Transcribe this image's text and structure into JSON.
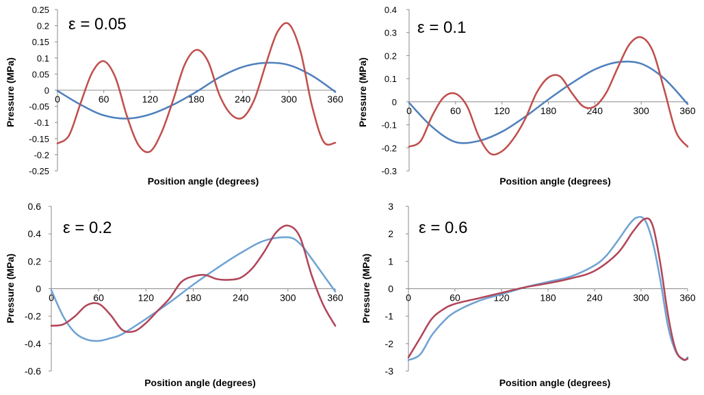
{
  "colors": {
    "blue": "#4f81bd",
    "red": "#c0504d",
    "axis": "#888888",
    "text": "#000000"
  },
  "chart_data": [
    {
      "type": "line",
      "title": "ε = 0.05",
      "xlabel": "Position angle (degrees)",
      "ylabel": "Pressure (MPa)",
      "xlim": [
        0,
        360
      ],
      "ylim": [
        -0.25,
        0.25
      ],
      "xticks": [
        0,
        60,
        120,
        180,
        240,
        300,
        360
      ],
      "yticks": [
        -0.25,
        -0.2,
        -0.15,
        -0.1,
        -0.05,
        0,
        0.05,
        0.1,
        0.15,
        0.2,
        0.25
      ],
      "ytick_labels": [
        "-0.25",
        "-0.2",
        "-0.15",
        "-0.1",
        "-0.05",
        "0",
        "0.05",
        "0.1",
        "0.15",
        "0.2",
        "0.25"
      ],
      "series": [
        {
          "color": "#4f81bd",
          "x": [
            0,
            30,
            60,
            90,
            120,
            150,
            180,
            210,
            240,
            270,
            300,
            330,
            360
          ],
          "y": [
            -0.002,
            -0.045,
            -0.078,
            -0.088,
            -0.075,
            -0.045,
            -0.005,
            0.04,
            0.072,
            0.085,
            0.078,
            0.045,
            -0.005
          ]
        },
        {
          "color": "#c0504d",
          "x": [
            0,
            15,
            30,
            45,
            60,
            75,
            90,
            105,
            120,
            135,
            150,
            165,
            180,
            195,
            210,
            225,
            240,
            255,
            270,
            285,
            300,
            315,
            330,
            345,
            360
          ],
          "y": [
            -0.165,
            -0.14,
            -0.04,
            0.055,
            0.09,
            0.04,
            -0.08,
            -0.17,
            -0.19,
            -0.13,
            -0.03,
            0.08,
            0.125,
            0.09,
            -0.015,
            -0.075,
            -0.085,
            -0.03,
            0.08,
            0.18,
            0.205,
            0.12,
            -0.05,
            -0.16,
            -0.163
          ]
        }
      ]
    },
    {
      "type": "line",
      "title": "ε = 0.1",
      "xlabel": "Position angle (degrees)",
      "ylabel": "Pressure (MPa)",
      "xlim": [
        0,
        360
      ],
      "ylim": [
        -0.3,
        0.4
      ],
      "xticks": [
        0,
        60,
        120,
        180,
        240,
        300,
        360
      ],
      "yticks": [
        -0.3,
        -0.2,
        -0.1,
        0,
        0.1,
        0.2,
        0.3,
        0.4
      ],
      "ytick_labels": [
        "-0.3",
        "-0.2",
        "-0.1",
        "0",
        "0.1",
        "0.2",
        "0.3",
        "0.4"
      ],
      "series": [
        {
          "color": "#4f81bd",
          "x": [
            0,
            30,
            60,
            90,
            120,
            150,
            180,
            210,
            240,
            270,
            300,
            330,
            360
          ],
          "y": [
            -0.005,
            -0.11,
            -0.175,
            -0.17,
            -0.13,
            -0.065,
            0.01,
            0.08,
            0.14,
            0.172,
            0.165,
            0.1,
            -0.01
          ]
        },
        {
          "color": "#c0504d",
          "x": [
            0,
            15,
            30,
            45,
            60,
            75,
            90,
            105,
            120,
            135,
            150,
            165,
            180,
            195,
            210,
            225,
            240,
            255,
            270,
            285,
            300,
            315,
            330,
            345,
            360
          ],
          "y": [
            -0.195,
            -0.17,
            -0.06,
            0.02,
            0.035,
            -0.02,
            -0.15,
            -0.225,
            -0.215,
            -0.16,
            -0.075,
            0.04,
            0.105,
            0.11,
            0.04,
            -0.02,
            -0.02,
            0.04,
            0.15,
            0.25,
            0.28,
            0.22,
            0.05,
            -0.13,
            -0.195
          ]
        }
      ]
    },
    {
      "type": "line",
      "title": "ε = 0.2",
      "xlabel": "Position angle (degrees)",
      "ylabel": "Pressure (MPa)",
      "xlim": [
        0,
        360
      ],
      "ylim": [
        -0.6,
        0.6
      ],
      "xticks": [
        0,
        60,
        120,
        180,
        240,
        300,
        360
      ],
      "yticks": [
        -0.6,
        -0.4,
        -0.2,
        0,
        0.2,
        0.4,
        0.6
      ],
      "ytick_labels": [
        "-0.6",
        "-0.4",
        "-0.2",
        "0",
        "0.2",
        "0.4",
        "0.6"
      ],
      "series": [
        {
          "color": "#6fa3d3",
          "x": [
            0,
            15,
            30,
            45,
            60,
            75,
            90,
            120,
            150,
            180,
            210,
            240,
            270,
            300,
            315,
            330,
            345,
            360
          ],
          "y": [
            -0.01,
            -0.2,
            -0.32,
            -0.37,
            -0.38,
            -0.36,
            -0.33,
            -0.22,
            -0.1,
            0.03,
            0.15,
            0.26,
            0.35,
            0.375,
            0.33,
            0.22,
            0.1,
            -0.02
          ]
        },
        {
          "color": "#b1465a",
          "x": [
            0,
            15,
            30,
            45,
            60,
            75,
            90,
            105,
            120,
            135,
            150,
            165,
            180,
            195,
            210,
            225,
            240,
            255,
            270,
            285,
            300,
            315,
            330,
            345,
            360
          ],
          "y": [
            -0.27,
            -0.26,
            -0.2,
            -0.12,
            -0.11,
            -0.19,
            -0.3,
            -0.31,
            -0.25,
            -0.16,
            -0.07,
            0.05,
            0.09,
            0.1,
            0.07,
            0.065,
            0.08,
            0.15,
            0.27,
            0.41,
            0.46,
            0.38,
            0.1,
            -0.12,
            -0.27
          ]
        }
      ]
    },
    {
      "type": "line",
      "title": "ε = 0.6",
      "xlabel": "Position angle (degrees)",
      "ylabel": "Pressure (MPa)",
      "xlim": [
        0,
        360
      ],
      "ylim": [
        -3,
        3
      ],
      "xticks": [
        0,
        60,
        120,
        180,
        240,
        300,
        360
      ],
      "yticks": [
        -3,
        -2,
        -1,
        0,
        1,
        2,
        3
      ],
      "ytick_labels": [
        "-3",
        "-2",
        "-1",
        "0",
        "1",
        "2",
        "3"
      ],
      "series": [
        {
          "color": "#6fa3d3",
          "x": [
            0,
            15,
            30,
            45,
            60,
            90,
            120,
            150,
            180,
            210,
            240,
            255,
            270,
            285,
            295,
            305,
            315,
            325,
            335,
            345,
            355,
            360
          ],
          "y": [
            -2.6,
            -2.4,
            -1.7,
            -1.2,
            -0.85,
            -0.45,
            -0.2,
            0.05,
            0.25,
            0.45,
            0.85,
            1.2,
            1.75,
            2.35,
            2.6,
            2.5,
            1.7,
            0.3,
            -1.4,
            -2.3,
            -2.6,
            -2.5
          ]
        },
        {
          "color": "#b1465a",
          "x": [
            0,
            15,
            30,
            45,
            60,
            90,
            120,
            150,
            180,
            210,
            240,
            270,
            290,
            305,
            315,
            325,
            335,
            345,
            355,
            360
          ],
          "y": [
            -2.5,
            -1.8,
            -1.1,
            -0.75,
            -0.55,
            -0.35,
            -0.15,
            0.05,
            0.2,
            0.38,
            0.65,
            1.3,
            2.1,
            2.55,
            2.3,
            0.9,
            -1.0,
            -2.25,
            -2.58,
            -2.55
          ]
        }
      ]
    }
  ]
}
